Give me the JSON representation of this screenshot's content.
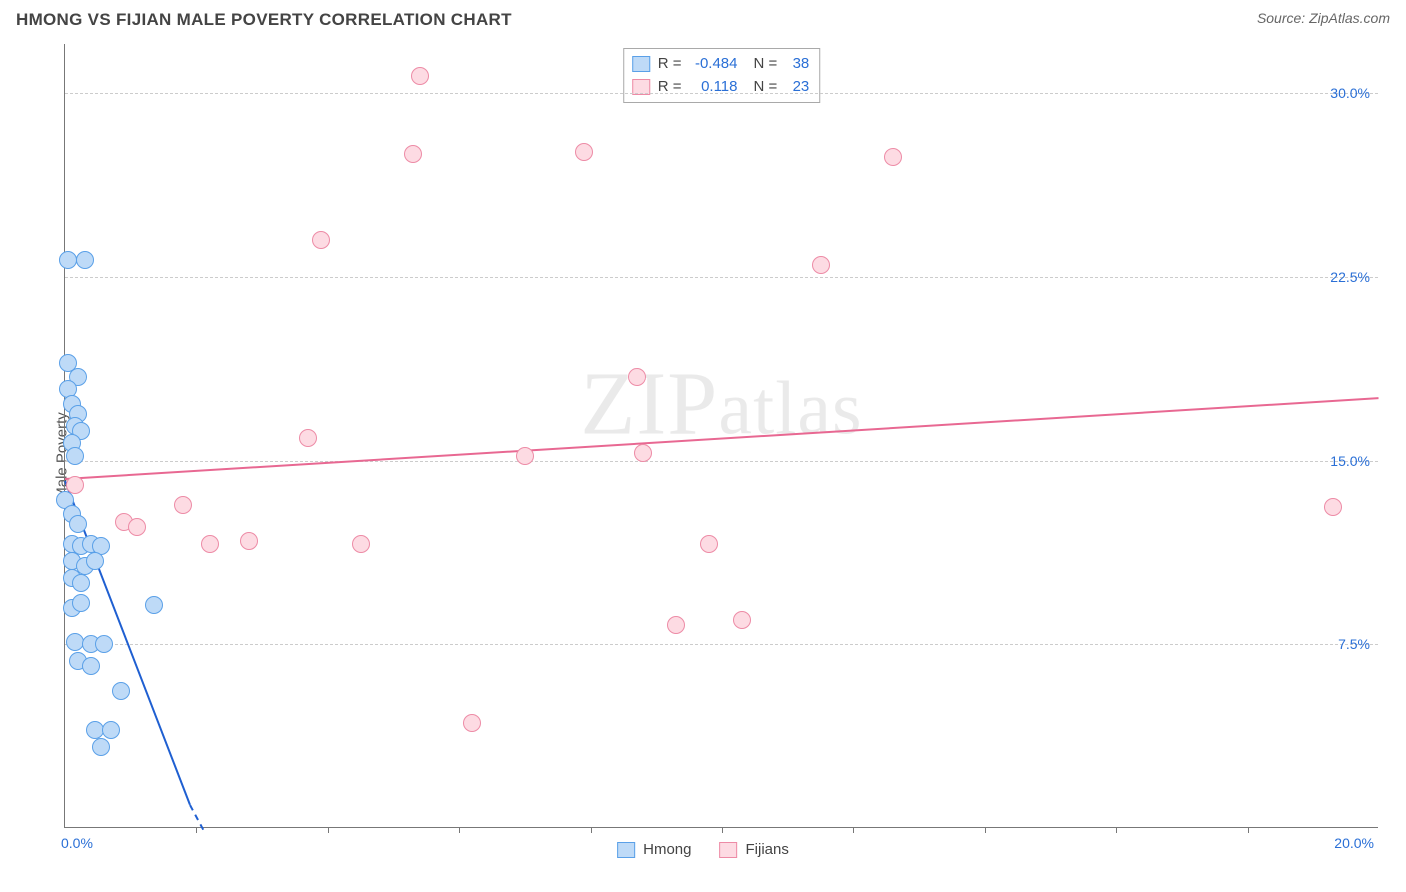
{
  "title": "HMONG VS FIJIAN MALE POVERTY CORRELATION CHART",
  "source": "Source: ZipAtlas.com",
  "y_axis_label": "Male Poverty",
  "watermark": "ZIPatlas",
  "chart": {
    "type": "scatter",
    "xlim": [
      0,
      20
    ],
    "ylim": [
      0,
      32
    ],
    "x_ticks_minor": [
      2,
      4,
      6,
      8,
      10,
      12,
      14,
      16,
      18
    ],
    "x_tick_labels": [
      {
        "pos": 0,
        "text": "0.0%",
        "align": "left"
      },
      {
        "pos": 20,
        "text": "20.0%",
        "align": "right"
      }
    ],
    "y_gridlines": [
      7.5,
      15.0,
      22.5,
      30.0
    ],
    "y_tick_labels": [
      {
        "pos": 7.5,
        "text": "7.5%"
      },
      {
        "pos": 15.0,
        "text": "15.0%"
      },
      {
        "pos": 22.5,
        "text": "22.5%"
      },
      {
        "pos": 30.0,
        "text": "30.0%"
      }
    ],
    "background_color": "#ffffff",
    "grid_color": "#cccccc",
    "axis_color": "#777777",
    "tick_label_color": "#2a6fd6",
    "marker_radius": 9,
    "series": [
      {
        "name": "Hmong",
        "fill": "#bedaf7",
        "stroke": "#5aa0e8",
        "trend_color": "#1f5fd1",
        "R": "-0.484",
        "N": "38",
        "trend": {
          "x1": 0,
          "y1": 14.2,
          "x2": 1.9,
          "y2": 1.0,
          "dash_to_x": 2.1
        },
        "points": [
          [
            0.05,
            23.2
          ],
          [
            0.3,
            23.2
          ],
          [
            0.05,
            19.0
          ],
          [
            0.2,
            18.4
          ],
          [
            0.05,
            17.9
          ],
          [
            0.1,
            17.3
          ],
          [
            0.2,
            16.9
          ],
          [
            0.15,
            16.4
          ],
          [
            0.25,
            16.2
          ],
          [
            0.1,
            15.7
          ],
          [
            0.15,
            15.2
          ],
          [
            0.0,
            13.4
          ],
          [
            0.1,
            12.8
          ],
          [
            0.2,
            12.4
          ],
          [
            0.1,
            11.6
          ],
          [
            0.25,
            11.5
          ],
          [
            0.4,
            11.6
          ],
          [
            0.55,
            11.5
          ],
          [
            0.1,
            10.9
          ],
          [
            0.3,
            10.7
          ],
          [
            0.45,
            10.9
          ],
          [
            0.1,
            10.2
          ],
          [
            0.25,
            10.0
          ],
          [
            0.1,
            9.0
          ],
          [
            0.25,
            9.2
          ],
          [
            1.35,
            9.1
          ],
          [
            0.15,
            7.6
          ],
          [
            0.4,
            7.5
          ],
          [
            0.6,
            7.5
          ],
          [
            0.2,
            6.8
          ],
          [
            0.4,
            6.6
          ],
          [
            0.85,
            5.6
          ],
          [
            0.45,
            4.0
          ],
          [
            0.7,
            4.0
          ],
          [
            0.55,
            3.3
          ]
        ]
      },
      {
        "name": "Fijians",
        "fill": "#fddbe3",
        "stroke": "#ed8ba6",
        "trend_color": "#e86892",
        "R": "0.118",
        "N": "23",
        "trend": {
          "x1": 0,
          "y1": 14.3,
          "x2": 20,
          "y2": 17.6
        },
        "points": [
          [
            5.4,
            30.7
          ],
          [
            5.3,
            27.5
          ],
          [
            7.9,
            27.6
          ],
          [
            12.6,
            27.4
          ],
          [
            3.9,
            24.0
          ],
          [
            11.5,
            23.0
          ],
          [
            8.7,
            18.4
          ],
          [
            3.7,
            15.9
          ],
          [
            7.0,
            15.2
          ],
          [
            8.8,
            15.3
          ],
          [
            0.15,
            14.0
          ],
          [
            1.8,
            13.2
          ],
          [
            19.3,
            13.1
          ],
          [
            0.9,
            12.5
          ],
          [
            1.1,
            12.3
          ],
          [
            2.2,
            11.6
          ],
          [
            2.8,
            11.7
          ],
          [
            4.5,
            11.6
          ],
          [
            9.8,
            11.6
          ],
          [
            9.3,
            8.3
          ],
          [
            10.3,
            8.5
          ],
          [
            6.2,
            4.3
          ]
        ]
      }
    ]
  },
  "stats_legend": {
    "label_R": "R =",
    "label_N": "N ="
  },
  "bottom_legend": {
    "items": [
      {
        "swatch_fill": "#bedaf7",
        "swatch_stroke": "#5aa0e8",
        "label": "Hmong"
      },
      {
        "swatch_fill": "#fddbe3",
        "swatch_stroke": "#ed8ba6",
        "label": "Fijians"
      }
    ]
  }
}
